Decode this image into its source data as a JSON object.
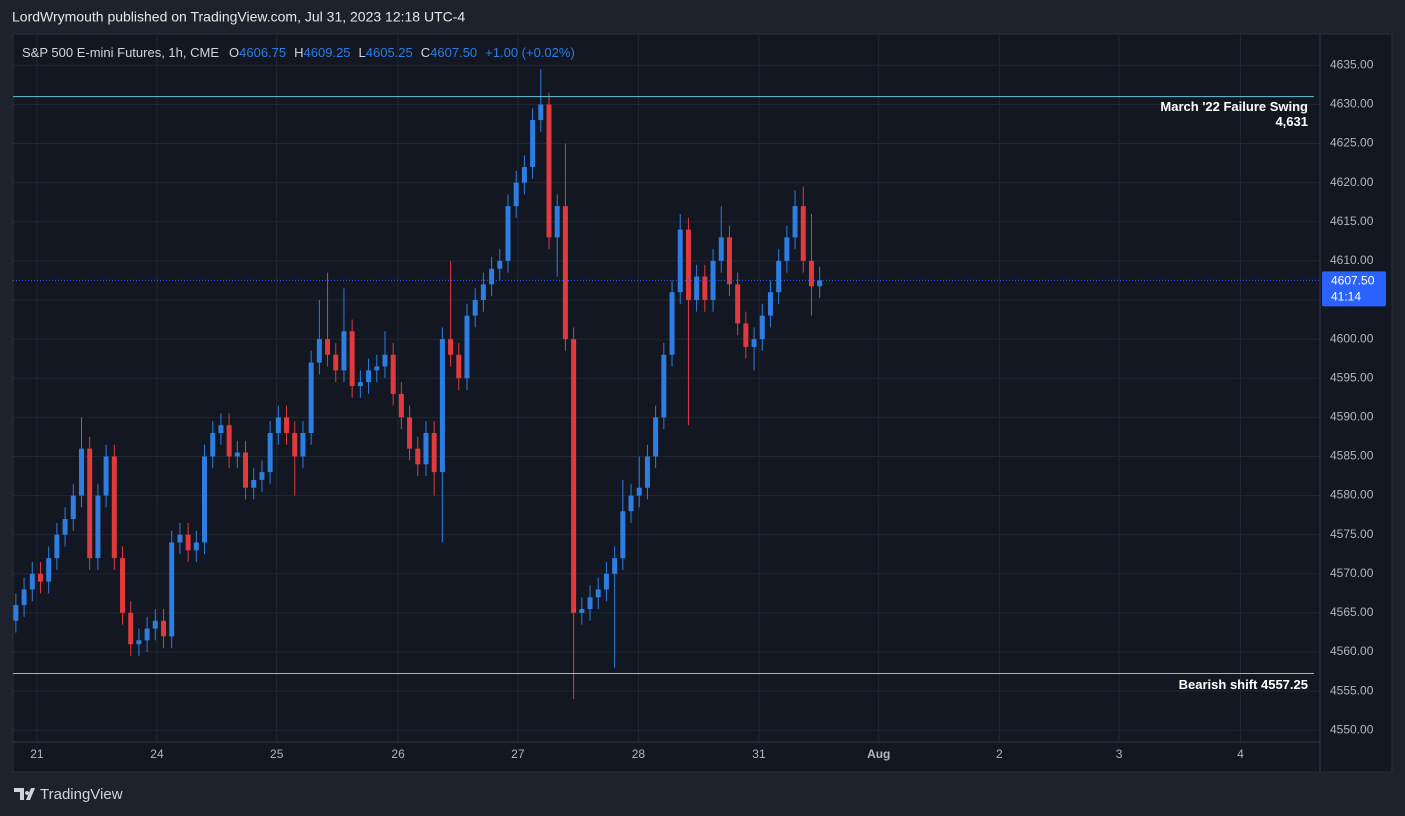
{
  "header": {
    "publisher": "LordWrymouth published on TradingView.com, Jul 31, 2023 12:18 UTC-4"
  },
  "footer": {
    "brand": "TradingView"
  },
  "chart_data": {
    "type": "candlestick",
    "title": "S&P 500 E-mini Futures, 1h, CME",
    "ohlc_legend": [
      {
        "label": "O",
        "value": "4606.75"
      },
      {
        "label": "H",
        "value": "4609.25"
      },
      {
        "label": "L",
        "value": "4605.25"
      },
      {
        "label": "C",
        "value": "4607.50"
      }
    ],
    "change": "+1.00 (+0.02%)",
    "up_color": "#2e7de1",
    "down_color": "#e0393e",
    "open": [
      4564,
      4566,
      4568,
      4570,
      4569,
      4572,
      4575,
      4577,
      4580,
      4586,
      4572,
      4580,
      4585,
      4572,
      4565,
      4561,
      4561.5,
      4563,
      4564,
      4562,
      4574,
      4575,
      4573,
      4574,
      4585,
      4588,
      4589,
      4585,
      4585.5,
      4581,
      4582,
      4583,
      4588,
      4590,
      4588,
      4585,
      4588,
      4597,
      4600,
      4598,
      4596,
      4601,
      4594,
      4594.5,
      4596,
      4596.5,
      4598,
      4593,
      4590,
      4586,
      4584,
      4588,
      4583,
      4600,
      4598,
      4595,
      4603,
      4605,
      4607,
      4609,
      4610,
      4617,
      4620,
      4622,
      4628,
      4630,
      4613,
      4617,
      4600,
      4565,
      4565.5,
      4567,
      4568,
      4570,
      4572,
      4578,
      4580,
      4581,
      4585,
      4590,
      4598,
      4606,
      4614,
      4605,
      4608,
      4605,
      4610,
      4613,
      4607,
      4602,
      4599,
      4600,
      4603,
      4606,
      4610,
      4613,
      4617,
      4610,
      4606.75
    ],
    "high": [
      4567.5,
      4569.5,
      4571.5,
      4571.5,
      4573.5,
      4576.5,
      4578.5,
      4581.5,
      4590,
      4587.5,
      4581.5,
      4586.5,
      4586.5,
      4573.5,
      4566.5,
      4563,
      4564.5,
      4565.5,
      4565.5,
      4575.5,
      4576.5,
      4576.5,
      4575.5,
      4586.5,
      4589.5,
      4590.5,
      4590.5,
      4587,
      4587,
      4583.5,
      4584.5,
      4589.5,
      4591.5,
      4591.5,
      4589.5,
      4589.5,
      4598.5,
      4605,
      4608.5,
      4599.5,
      4606.5,
      4602.5,
      4596,
      4597.5,
      4598,
      4601,
      4599.5,
      4594.5,
      4591.5,
      4587.5,
      4589.5,
      4589.5,
      4601.5,
      4610,
      4599.5,
      4604.5,
      4606.5,
      4608.5,
      4610.5,
      4611.5,
      4618.5,
      4621.5,
      4623.5,
      4629.5,
      4634.5,
      4631.5,
      4618.5,
      4625,
      4601.5,
      4567,
      4568.5,
      4569.5,
      4571.5,
      4573.5,
      4582,
      4581.5,
      4585,
      4586.5,
      4591.5,
      4599.5,
      4607.5,
      4616,
      4615.5,
      4609.5,
      4609.5,
      4611.5,
      4617,
      4614.5,
      4608.5,
      4603.5,
      4601.5,
      4604.5,
      4607.5,
      4611.5,
      4614.5,
      4619,
      4619.5,
      4616,
      4609.25
    ],
    "low": [
      4562.5,
      4564.5,
      4566.5,
      4567.5,
      4567.5,
      4570.5,
      4573.5,
      4575.5,
      4578.5,
      4570.5,
      4570.5,
      4578.5,
      4570.5,
      4563.5,
      4559.5,
      4559.5,
      4560,
      4561.5,
      4560.5,
      4560.5,
      4572.5,
      4571.5,
      4571.5,
      4572.5,
      4583.5,
      4586.5,
      4583.5,
      4583.5,
      4579.5,
      4579.5,
      4580.5,
      4581.5,
      4586.5,
      4586.5,
      4580,
      4583.5,
      4586.5,
      4595.5,
      4596.5,
      4594.5,
      4594.5,
      4592.5,
      4592.5,
      4593,
      4594.5,
      4595,
      4591.5,
      4588.5,
      4584.5,
      4582.5,
      4582.5,
      4580,
      4574,
      4596.5,
      4593.5,
      4593.5,
      4601.5,
      4603.5,
      4605.5,
      4607.5,
      4608.5,
      4615.5,
      4618.5,
      4620.5,
      4626.5,
      4611.5,
      4608,
      4598.5,
      4554,
      4563.5,
      4564,
      4565.5,
      4566.5,
      4558,
      4570.5,
      4576.5,
      4578.5,
      4579.5,
      4583.5,
      4588.5,
      4596.5,
      4604.5,
      4589,
      4603.5,
      4603.5,
      4603.5,
      4608.5,
      4605.5,
      4600.5,
      4597.5,
      4596,
      4598.5,
      4601.5,
      4604.5,
      4608.5,
      4611.5,
      4608.5,
      4603,
      4605.25
    ],
    "close": [
      4566,
      4568,
      4570,
      4569,
      4572,
      4575,
      4577,
      4580,
      4586,
      4572,
      4580,
      4585,
      4572,
      4565,
      4561,
      4561.5,
      4563,
      4564,
      4562,
      4574,
      4575,
      4573,
      4574,
      4585,
      4588,
      4589,
      4585,
      4585.5,
      4581,
      4582,
      4583,
      4588,
      4590,
      4588,
      4585,
      4588,
      4597,
      4600,
      4598,
      4596,
      4601,
      4594,
      4594.5,
      4596,
      4596.5,
      4598,
      4593,
      4590,
      4586,
      4584,
      4588,
      4583,
      4600,
      4598,
      4595,
      4603,
      4605,
      4607,
      4609,
      4610,
      4617,
      4620,
      4622,
      4628,
      4630,
      4613,
      4617,
      4600,
      4565,
      4565.5,
      4567,
      4568,
      4570,
      4572,
      4578,
      4580,
      4581,
      4585,
      4590,
      4598,
      4606,
      4614,
      4605,
      4608,
      4605,
      4610,
      4613,
      4607,
      4602,
      4599,
      4600,
      4603,
      4606,
      4610,
      4613,
      4617,
      4610,
      4606.75,
      4607.5
    ],
    "xlim": [
      -0.35,
      159
    ],
    "xticks": [
      {
        "value": 2.56,
        "label": "21"
      },
      {
        "value": 17.2,
        "label": "24"
      },
      {
        "value": 31.8,
        "label": "25"
      },
      {
        "value": 46.6,
        "label": "26"
      },
      {
        "value": 61.2,
        "label": "27"
      },
      {
        "value": 75.9,
        "label": "28"
      },
      {
        "value": 90.6,
        "label": "31"
      },
      {
        "value": 105.2,
        "label": "Aug"
      },
      {
        "value": 119.9,
        "label": "2"
      },
      {
        "value": 134.5,
        "label": "3"
      },
      {
        "value": 149.3,
        "label": "4"
      }
    ],
    "ylim": [
      4548.5,
      4639
    ],
    "yticks": [
      {
        "value": 4550,
        "label": "4550.00"
      },
      {
        "value": 4555,
        "label": "4555.00"
      },
      {
        "value": 4560,
        "label": "4560.00"
      },
      {
        "value": 4565,
        "label": "4565.00"
      },
      {
        "value": 4570,
        "label": "4570.00"
      },
      {
        "value": 4575,
        "label": "4575.00"
      },
      {
        "value": 4580,
        "label": "4580.00"
      },
      {
        "value": 4585,
        "label": "4585.00"
      },
      {
        "value": 4590,
        "label": "4590.00"
      },
      {
        "value": 4595,
        "label": "4595.00"
      },
      {
        "value": 4600,
        "label": "4600.00"
      },
      {
        "value": 4605,
        "label": "4605.00"
      },
      {
        "value": 4610,
        "label": "4610.00"
      },
      {
        "value": 4615,
        "label": "4615.00"
      },
      {
        "value": 4620,
        "label": "4620.00"
      },
      {
        "value": 4625,
        "label": "4625.00"
      },
      {
        "value": 4630,
        "label": "4630.00"
      },
      {
        "value": 4635,
        "label": "4635.00"
      }
    ],
    "grid": true,
    "levels": [
      {
        "value": 4631,
        "label": "March '22 Failure Swing",
        "value_label": "4,631",
        "color": "#6ec3dc"
      },
      {
        "value": 4557.25,
        "label": "Bearish shift 4557.25",
        "color": "#f0a050"
      }
    ],
    "last_price": {
      "value": 4607.5,
      "label": "4607.50",
      "countdown": "41:14",
      "color": "#2962ff"
    }
  }
}
